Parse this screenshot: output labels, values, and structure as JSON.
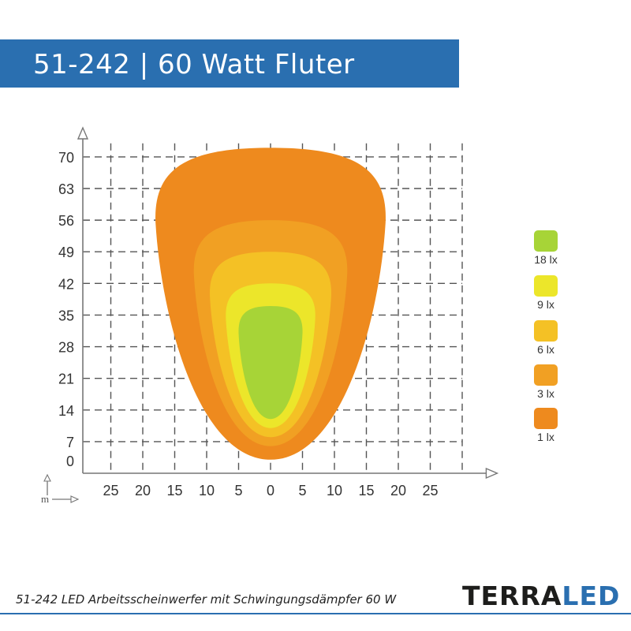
{
  "header": {
    "title": "51-242 | 60 Watt Fluter"
  },
  "chart_data": {
    "type": "isolux",
    "x_ticks": [
      "25",
      "20",
      "15",
      "10",
      "5",
      "0",
      "5",
      "10",
      "15",
      "20",
      "25"
    ],
    "y_ticks": [
      "0",
      "7",
      "14",
      "21",
      "28",
      "35",
      "42",
      "49",
      "56",
      "63",
      "70"
    ],
    "x_unit": "m",
    "xlim": [
      -30,
      30
    ],
    "ylim": [
      0,
      70
    ],
    "grid": true,
    "legend_position": "right",
    "levels": [
      {
        "label": "1 lx",
        "lux": 1,
        "color": "#ee8a1e",
        "extent": {
          "y_min": 3,
          "y_max": 72,
          "x_half_width_max": 18
        }
      },
      {
        "label": "3 lx",
        "lux": 3,
        "color": "#f1a023",
        "extent": {
          "y_min": 6,
          "y_max": 56,
          "x_half_width_max": 12
        }
      },
      {
        "label": "6 lx",
        "lux": 6,
        "color": "#f4c125",
        "extent": {
          "y_min": 8,
          "y_max": 49,
          "x_half_width_max": 9.5
        }
      },
      {
        "label": "9 lx",
        "lux": 9,
        "color": "#ece62a",
        "extent": {
          "y_min": 10,
          "y_max": 42,
          "x_half_width_max": 7
        }
      },
      {
        "label": "18 lx",
        "lux": 18,
        "color": "#a7d437",
        "extent": {
          "y_min": 12,
          "y_max": 37,
          "x_half_width_max": 5
        }
      }
    ]
  },
  "footer": {
    "caption": "51-242 LED Arbeitsscheinwerfer mit Schwingungsdämpfer 60 W",
    "brand_part1": "TERRA",
    "brand_part2": "LED"
  }
}
